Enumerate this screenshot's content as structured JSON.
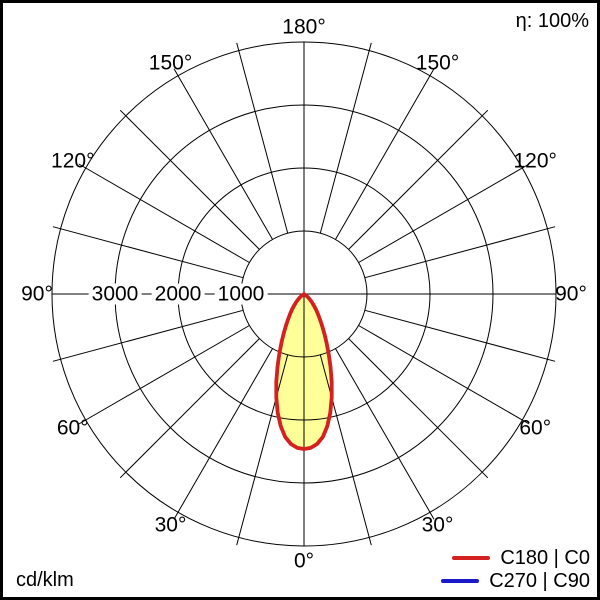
{
  "header": {
    "efficiency_label": "η: 100%"
  },
  "footer": {
    "unit_label": "cd/klm"
  },
  "legend": {
    "items": [
      {
        "label": "C180 | C0",
        "color": "#d42020"
      },
      {
        "label": "C270 | C90",
        "color": "#1a1ac8"
      }
    ]
  },
  "colors": {
    "background": "#ffffff",
    "grid": "#000000",
    "text": "#000000",
    "beam_fill": "#ffff99",
    "c0_curve": "#d42020",
    "c90_curve": "#1a1ac8"
  },
  "chart_data": {
    "type": "polar",
    "subtype": "luminous-intensity-distribution",
    "unit": "cd/klm",
    "efficiency": "100%",
    "angle_axis": {
      "zero_at": "bottom",
      "mirrored_left_right": true,
      "label_step_deg": 30,
      "grid_step_deg": 15,
      "labels": [
        "0°",
        "30°",
        "60°",
        "90°",
        "120°",
        "150°",
        "180°"
      ]
    },
    "radial_axis": {
      "tick_values": [
        1000,
        2000,
        3000
      ],
      "tick_labels": [
        "1000",
        "2000",
        "3000"
      ],
      "outer_value": 4000,
      "grid": true
    },
    "legend_position": "bottom-right",
    "series": [
      {
        "name": "C180 | C0",
        "color": "#d42020",
        "fill": "#ffff99",
        "symmetric": true,
        "gamma_deg": [
          0,
          2.5,
          5,
          7.5,
          10,
          12.5,
          15,
          17.5,
          20,
          22.5,
          25,
          27.5,
          30,
          32.5,
          35,
          37.5,
          40,
          42.5,
          45,
          47.5,
          50,
          52.5,
          55,
          57.5,
          60
        ],
        "intensity": [
          2460,
          2445,
          2390,
          2290,
          2130,
          1930,
          1700,
          1460,
          1230,
          1020,
          840,
          690,
          565,
          465,
          385,
          315,
          255,
          205,
          160,
          120,
          85,
          55,
          30,
          12,
          0
        ]
      },
      {
        "name": "C270 | C90",
        "color": "#1a1ac8",
        "symmetric": true,
        "coincident_with": "C180 | C0",
        "gamma_deg": [
          0,
          2.5,
          5,
          7.5,
          10,
          12.5,
          15,
          17.5,
          20,
          22.5,
          25,
          27.5,
          30,
          32.5,
          35,
          37.5,
          40,
          42.5,
          45,
          47.5,
          50,
          52.5,
          55,
          57.5,
          60
        ],
        "intensity": [
          2460,
          2445,
          2390,
          2290,
          2130,
          1930,
          1700,
          1460,
          1230,
          1020,
          840,
          690,
          565,
          465,
          385,
          315,
          255,
          205,
          160,
          120,
          85,
          55,
          30,
          12,
          0
        ]
      }
    ]
  }
}
